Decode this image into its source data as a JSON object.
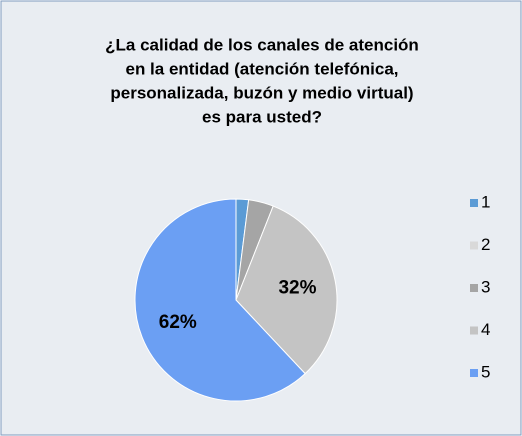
{
  "chart_data": {
    "type": "pie",
    "title": [
      "¿La calidad de los canales de atención",
      "en la entidad (atención telefónica,",
      "personalizada, buzón y medio virtual)",
      "es para usted?"
    ],
    "categories": [
      "1",
      "2",
      "3",
      "4",
      "5"
    ],
    "values": [
      2,
      0,
      4,
      32,
      62
    ],
    "value_labels": [
      null,
      null,
      null,
      "32%",
      "62%"
    ],
    "colors": [
      "#5b9bd5",
      "#d9d9d9",
      "#a5a5a5",
      "#c4c4c4",
      "#6b9ff3"
    ],
    "legend": "right"
  }
}
